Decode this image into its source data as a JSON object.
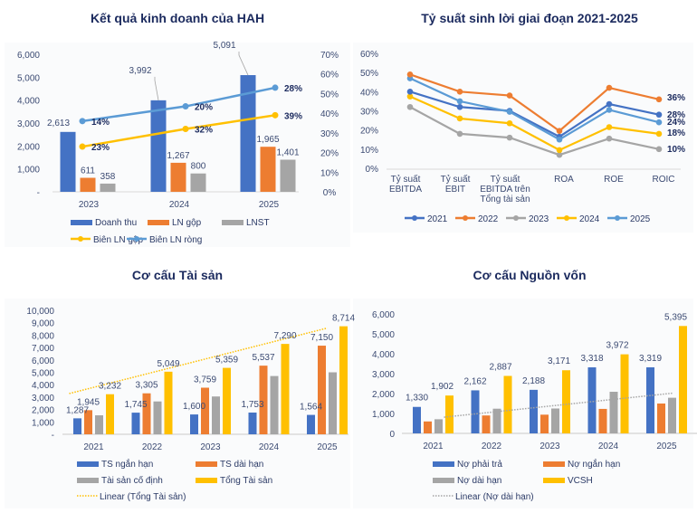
{
  "colors": {
    "blue": "#4472c4",
    "orange": "#ed7d31",
    "gray": "#a5a5a5",
    "yellow": "#ffc000",
    "lightblue": "#5b9bd5",
    "title": "#1b2a5e"
  },
  "chart_data": [
    {
      "id": "kqkd",
      "type": "bar",
      "title": "Kết quả kinh doanh của HAH",
      "categories": [
        "2023",
        "2024",
        "2025"
      ],
      "y_ticks": [
        "6,000",
        "5,000",
        "4,000",
        "3,000",
        "2,000",
        "1,000",
        "-"
      ],
      "ylim": [
        0,
        6000
      ],
      "y2_ticks": [
        "70%",
        "60%",
        "50%",
        "40%",
        "30%",
        "20%",
        "10%",
        "0%"
      ],
      "y2lim": [
        0,
        70
      ],
      "series": [
        {
          "name": "Doanh thu",
          "kind": "bar",
          "color": "#4472c4",
          "values": [
            2613,
            3992,
            5091
          ],
          "labels": [
            "2,613",
            "3,992",
            "5,091"
          ]
        },
        {
          "name": "LN gộp",
          "kind": "bar",
          "color": "#ed7d31",
          "values": [
            611,
            1267,
            1965
          ],
          "labels": [
            "611",
            "1,267",
            "1,965"
          ]
        },
        {
          "name": "LNST",
          "kind": "bar",
          "color": "#a5a5a5",
          "values": [
            358,
            800,
            1401
          ],
          "labels": [
            "358",
            "800",
            "1,401"
          ]
        },
        {
          "name": "Biên LN gộp",
          "kind": "line",
          "axis": "right",
          "color": "#ffc000",
          "values": [
            23,
            32,
            39
          ],
          "labels": [
            "23%",
            "32%",
            "39%"
          ]
        },
        {
          "name": "Biên LN ròng",
          "kind": "line",
          "axis": "right",
          "color": "#5b9bd5",
          "values": [
            14,
            20,
            28
          ],
          "labels": [
            "14%",
            "20%",
            "28%"
          ]
        }
      ],
      "legend": [
        "Doanh thu",
        "LN gộp",
        "LNST",
        "Biên LN gộp",
        "Biên LN ròng"
      ],
      "legend_position": "bottom",
      "grid": false
    },
    {
      "id": "tssl",
      "type": "line",
      "title": "Tỷ suất sinh lời giai đoạn 2021-2025",
      "categories": [
        [
          "Tỷ suất",
          "EBITDA"
        ],
        [
          "Tỷ suất",
          "EBIT"
        ],
        [
          "Tỷ suất",
          "EBITDA trên",
          "Tổng tài sản"
        ],
        [
          "ROA"
        ],
        [
          "ROE"
        ],
        [
          "ROIC"
        ]
      ],
      "y_ticks": [
        "60%",
        "50%",
        "40%",
        "30%",
        "20%",
        "10%",
        "0%"
      ],
      "ylim": [
        0,
        60
      ],
      "series": [
        {
          "name": "2021",
          "color": "#4472c4",
          "values": [
            40,
            32,
            30,
            16.5,
            33.5,
            28
          ],
          "end_label": "28%"
        },
        {
          "name": "2022",
          "color": "#ed7d31",
          "values": [
            49,
            40,
            38,
            19.5,
            42,
            36
          ],
          "end_label": "36%"
        },
        {
          "name": "2023",
          "color": "#a5a5a5",
          "values": [
            32,
            18,
            16,
            7,
            15.5,
            10
          ],
          "end_label": "10%"
        },
        {
          "name": "2024",
          "color": "#ffc000",
          "values": [
            37.5,
            26,
            23.5,
            9.5,
            21.5,
            18
          ],
          "end_label": "18%"
        },
        {
          "name": "2025",
          "color": "#5b9bd5",
          "values": [
            47,
            35,
            29.5,
            15,
            30.5,
            24
          ],
          "end_label": "24%"
        }
      ],
      "legend": [
        "2021",
        "2022",
        "2023",
        "2024",
        "2025"
      ],
      "legend_position": "bottom",
      "grid": false
    },
    {
      "id": "ccts",
      "type": "bar",
      "title": "Cơ cấu Tài sản",
      "categories": [
        "2021",
        "2022",
        "2023",
        "2024",
        "2025"
      ],
      "y_ticks": [
        "10,000",
        "9,000",
        "8,000",
        "7,000",
        "6,000",
        "5,000",
        "4,000",
        "3,000",
        "2,000",
        "1,000",
        "-"
      ],
      "ylim": [
        0,
        10000
      ],
      "series": [
        {
          "name": "TS ngắn hạn",
          "color": "#4472c4",
          "values": [
            1287,
            1745,
            1600,
            1753,
            1564
          ],
          "labels": [
            "1,287",
            "1,745",
            "1,600",
            "1,753",
            "1,564"
          ]
        },
        {
          "name": "TS dài hạn",
          "color": "#ed7d31",
          "values": [
            1945,
            3305,
            3759,
            5537,
            7150
          ],
          "labels": [
            "1,945",
            "3,305",
            "3,759",
            "5,537",
            "7,150"
          ]
        },
        {
          "name": "Tài sản cố định",
          "color": "#a5a5a5",
          "values": [
            1530,
            2650,
            3050,
            4700,
            5000
          ],
          "labels": [
            "",
            "",
            "",
            "",
            ""
          ]
        },
        {
          "name": "Tổng Tài sản",
          "color": "#ffc000",
          "values": [
            3232,
            5049,
            5359,
            7290,
            8714
          ],
          "labels": [
            "3,232",
            "5,049",
            "5,359",
            "7,290",
            "8,714"
          ]
        }
      ],
      "trendline": {
        "name": "Linear (Tổng Tài sản)",
        "of": "Tổng Tài sản",
        "color": "#ffc000"
      },
      "legend": [
        "TS ngắn hạn",
        "TS dài hạn",
        "Tài sản cố định",
        "Tổng Tài sản",
        "Linear (Tổng Tài sản)"
      ],
      "legend_position": "bottom",
      "grid": false
    },
    {
      "id": "ccnv",
      "type": "bar",
      "title": "Cơ cấu Nguồn vốn",
      "categories": [
        "2021",
        "2022",
        "2023",
        "2024",
        "2025"
      ],
      "y_ticks": [
        "6,000",
        "5,000",
        "4,000",
        "3,000",
        "2,000",
        "1,000",
        "0"
      ],
      "ylim": [
        0,
        6000
      ],
      "series": [
        {
          "name": "Nợ phải trả",
          "color": "#4472c4",
          "values": [
            1330,
            2162,
            2188,
            3318,
            3319
          ],
          "labels": [
            "1,330",
            "2,162",
            "2,188",
            "3,318",
            "3,319"
          ]
        },
        {
          "name": "Nợ ngắn hạn",
          "color": "#ed7d31",
          "values": [
            600,
            900,
            940,
            1230,
            1500
          ],
          "labels": [
            "",
            "",
            "",
            "",
            ""
          ]
        },
        {
          "name": "Nợ dài hạn",
          "color": "#a5a5a5",
          "values": [
            710,
            1240,
            1250,
            2090,
            1790
          ],
          "labels": [
            "",
            "",
            "",
            "",
            ""
          ]
        },
        {
          "name": "VCSH",
          "color": "#ffc000",
          "values": [
            1902,
            2887,
            3171,
            3972,
            5395
          ],
          "labels": [
            "1,902",
            "2,887",
            "3,171",
            "3,972",
            "5,395"
          ]
        }
      ],
      "trendline": {
        "name": "Linear (Nợ dài hạn)",
        "of": "Nợ dài hạn",
        "color": "#a5a5a5"
      },
      "legend": [
        "Nợ phải trả",
        "Nợ ngắn hạn",
        "Nợ dài hạn",
        "VCSH",
        "Linear (Nợ dài hạn)"
      ],
      "legend_position": "bottom",
      "grid": false
    }
  ]
}
